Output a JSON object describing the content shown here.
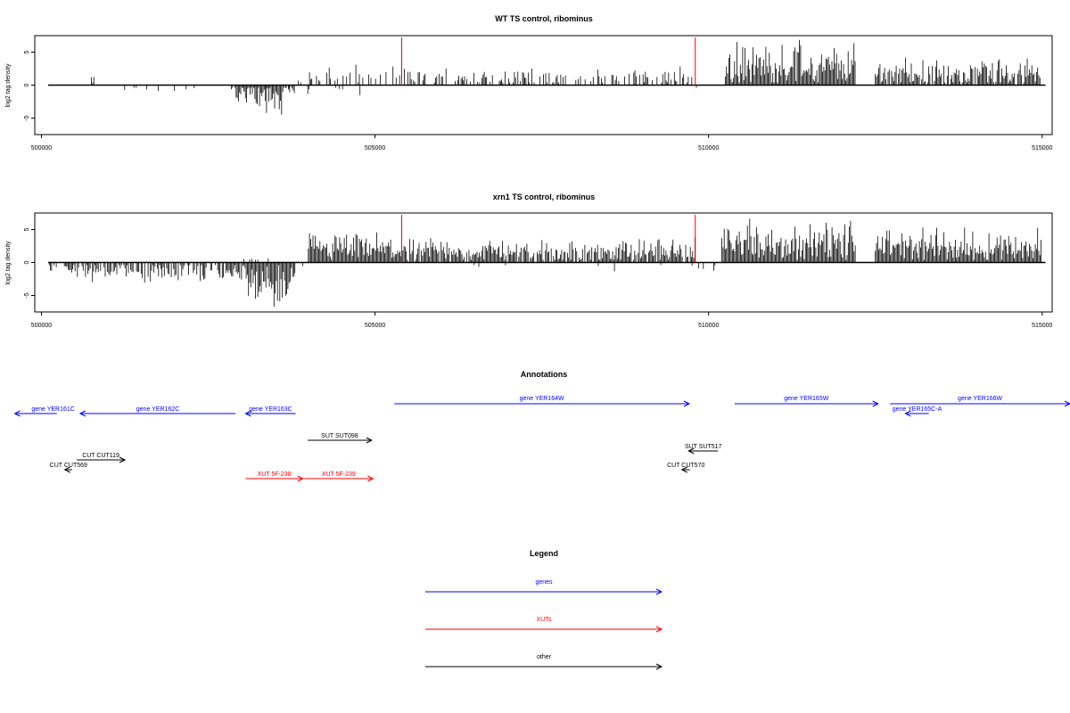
{
  "colors": {
    "gene": "#0000ff",
    "xut": "#ff0000",
    "other": "#000000",
    "marker": "#ff0000",
    "bars": "#000000"
  },
  "chart_data": [
    {
      "type": "bar",
      "title": "WT TS control, ribominus",
      "ylabel": "log2 tag density",
      "xlim": [
        499900,
        515150
      ],
      "ylim": [
        -7.5,
        7.5
      ],
      "xticks": [
        500000,
        505000,
        510000,
        515000
      ],
      "yticks": [
        -5,
        0,
        5
      ],
      "red_markers": [
        505400,
        509800
      ],
      "segments": [
        {
          "x": [
            500100,
            500200
          ],
          "density": 0.15,
          "sign": -1,
          "max": 1.2
        },
        {
          "x": [
            500500,
            505000
          ],
          "density": 0.1,
          "sign": -1,
          "max": 1.7
        },
        {
          "x": [
            500750,
            500800
          ],
          "density": 1,
          "sign": 1,
          "max": 2
        },
        {
          "x": [
            502900,
            503200
          ],
          "density": 1,
          "sign": -1,
          "max": 3
        },
        {
          "x": [
            503200,
            503600
          ],
          "density": 1,
          "sign": -1,
          "max": 5
        },
        {
          "x": [
            503600,
            503800
          ],
          "density": 0.5,
          "sign": -1,
          "max": 2
        },
        {
          "x": [
            503800,
            504000
          ],
          "density": 0.4,
          "sign": 1,
          "max": 2
        },
        {
          "x": [
            504000,
            505300
          ],
          "density": 0.35,
          "sign": 1,
          "max": 3.5
        },
        {
          "x": [
            505300,
            509800
          ],
          "density": 0.45,
          "sign": 1,
          "max": 3
        },
        {
          "x": [
            509800,
            510000
          ],
          "density": 0.3,
          "sign": -1,
          "max": 2
        },
        {
          "x": [
            510250,
            512200
          ],
          "density": 1,
          "sign": 1,
          "max": 7
        },
        {
          "x": [
            512500,
            515000
          ],
          "density": 0.9,
          "sign": 1,
          "max": 4.5
        }
      ]
    },
    {
      "type": "bar",
      "title": "xrn1 TS control, ribominus",
      "ylabel": "log2 tag density",
      "xlim": [
        499900,
        515150
      ],
      "ylim": [
        -7.5,
        7.5
      ],
      "xticks": [
        500000,
        505000,
        510000,
        515000
      ],
      "yticks": [
        -5,
        0,
        5
      ],
      "red_markers": [
        505400,
        509800
      ],
      "segments": [
        {
          "x": [
            500100,
            500400
          ],
          "density": 0.5,
          "sign": -1,
          "max": 1.5
        },
        {
          "x": [
            500400,
            503000
          ],
          "density": 0.75,
          "sign": -1,
          "max": 3.5
        },
        {
          "x": [
            503000,
            503800
          ],
          "density": 1,
          "sign": -1,
          "max": 7
        },
        {
          "x": [
            503000,
            503400
          ],
          "density": 0.3,
          "sign": 1,
          "max": 1
        },
        {
          "x": [
            503900,
            504000
          ],
          "density": 0.2,
          "sign": -1,
          "max": 1
        },
        {
          "x": [
            504000,
            505400
          ],
          "density": 1,
          "sign": 1,
          "max": 5
        },
        {
          "x": [
            505400,
            509800
          ],
          "density": 0.9,
          "sign": 1,
          "max": 4
        },
        {
          "x": [
            505600,
            509800
          ],
          "density": 0.05,
          "sign": -1,
          "max": 1.5
        },
        {
          "x": [
            509800,
            510100
          ],
          "density": 0.2,
          "sign": -1,
          "max": 1.5
        },
        {
          "x": [
            510200,
            512200
          ],
          "density": 1,
          "sign": 1,
          "max": 7
        },
        {
          "x": [
            512500,
            515000
          ],
          "density": 1,
          "sign": 1,
          "max": 6
        }
      ]
    }
  ],
  "annotations": {
    "title": "Annotations",
    "xlim": [
      499900,
      515150
    ],
    "features": [
      {
        "label": "gene YER161C",
        "kind": "gene",
        "start": 499600,
        "end": 500230,
        "strand": "-",
        "row": 0
      },
      {
        "label": "gene YER162C",
        "kind": "gene",
        "start": 500580,
        "end": 502910,
        "strand": "-",
        "row": 0
      },
      {
        "label": "gene YER163C",
        "kind": "gene",
        "start": 503060,
        "end": 503810,
        "strand": "-",
        "row": 0
      },
      {
        "label": "gene YER164W",
        "kind": "gene",
        "start": 505290,
        "end": 509710,
        "strand": "+",
        "row": -1
      },
      {
        "label": "gene YER165W",
        "kind": "gene",
        "start": 510390,
        "end": 512540,
        "strand": "+",
        "row": -1
      },
      {
        "label": "gene YER165C-A",
        "kind": "gene",
        "start": 512950,
        "end": 513300,
        "strand": "-",
        "row": 0
      },
      {
        "label": "gene YER166W",
        "kind": "gene",
        "start": 512720,
        "end": 516100,
        "strand": "+",
        "row": -1
      },
      {
        "label": "SUT SUT098",
        "kind": "other",
        "start": 503990,
        "end": 504950,
        "strand": "+",
        "row": 2
      },
      {
        "label": "SUT SUT517",
        "kind": "other",
        "start": 509700,
        "end": 510140,
        "strand": "-",
        "row": 3
      },
      {
        "label": "CUT CUT119",
        "kind": "other",
        "start": 500530,
        "end": 501250,
        "strand": "+",
        "row": 4
      },
      {
        "label": "CUT CUT569",
        "kind": "other",
        "start": 500350,
        "end": 500460,
        "strand": "-",
        "row": 5
      },
      {
        "label": "CUT CUT570",
        "kind": "other",
        "start": 509600,
        "end": 509720,
        "strand": "-",
        "row": 5
      },
      {
        "label": "XUT 5F-238",
        "kind": "xut",
        "start": 503060,
        "end": 503920,
        "strand": "+",
        "row": 6
      },
      {
        "label": "XUT 5F-239",
        "kind": "xut",
        "start": 503940,
        "end": 504970,
        "strand": "+",
        "row": 6
      }
    ]
  },
  "legend": {
    "title": "Legend",
    "items": [
      {
        "label": "genes",
        "kind": "gene"
      },
      {
        "label": "XUTs",
        "kind": "xut"
      },
      {
        "label": "other",
        "kind": "other"
      }
    ]
  }
}
